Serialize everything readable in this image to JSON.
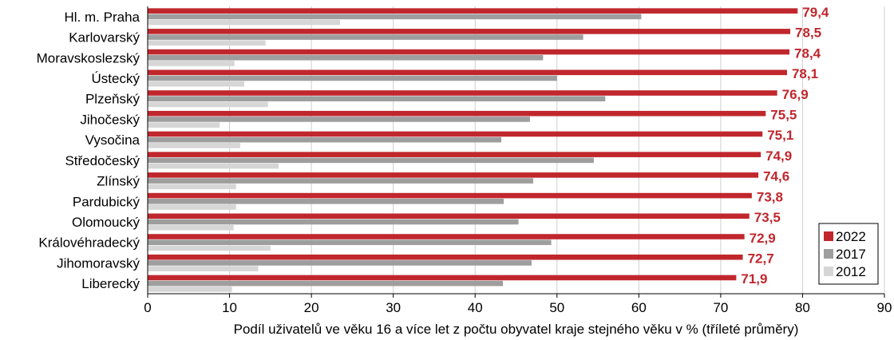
{
  "chart_data": {
    "type": "bar",
    "orientation": "horizontal",
    "categories": [
      "Hl. m. Praha",
      "Karlovarský",
      "Moravskoslezský",
      "Ústecký",
      "Plzeňský",
      "Jihočeský",
      "Vysočina",
      "Středočeský",
      "Zlínský",
      "Pardubický",
      "Olomoucký",
      "Královéhradecký",
      "Jihomoravský",
      "Liberecký"
    ],
    "series": [
      {
        "name": "2022",
        "color": "#c0272d",
        "values": [
          79.4,
          78.5,
          78.4,
          78.1,
          76.9,
          75.5,
          75.1,
          74.9,
          74.6,
          73.8,
          73.5,
          72.9,
          72.7,
          71.9
        ],
        "labels": [
          "79,4",
          "78,5",
          "78,4",
          "78,1",
          "76,9",
          "75,5",
          "75,1",
          "74,9",
          "74,6",
          "73,8",
          "73,5",
          "72,9",
          "72,7",
          "71,9"
        ]
      },
      {
        "name": "2017",
        "color": "#9e9e9e",
        "values": [
          60.3,
          53.2,
          48.3,
          50.0,
          55.9,
          46.7,
          43.2,
          54.5,
          47.1,
          43.5,
          45.3,
          49.3,
          46.9,
          43.4
        ]
      },
      {
        "name": "2012",
        "color": "#d6d6d6",
        "values": [
          23.5,
          14.4,
          10.6,
          11.8,
          14.7,
          8.8,
          11.3,
          16.0,
          10.8,
          10.8,
          10.5,
          15.0,
          13.5,
          10.3
        ]
      }
    ],
    "xlabel": "Podíl uživatelů ve věku 16 a více let z počtu obyvatel kraje stejného věku v % (tříleté průměry)",
    "xlim": [
      0,
      90
    ],
    "xticks": [
      0,
      10,
      20,
      30,
      40,
      50,
      60,
      70,
      80,
      90
    ],
    "grid": true,
    "legend_position": "bottom-right"
  }
}
